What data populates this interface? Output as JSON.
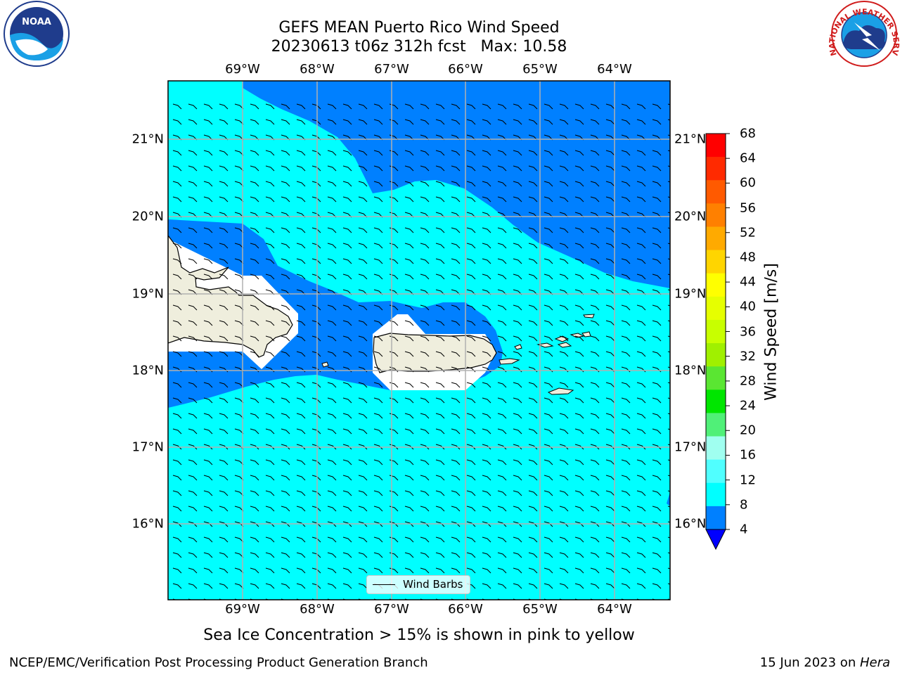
{
  "title": {
    "line1": "GEFS MEAN Puerto Rico Wind Speed",
    "line2": "20230613 t06z 312h fcst   Max: 10.58"
  },
  "longitude_labels": [
    "69°W",
    "68°W",
    "67°W",
    "66°W",
    "65°W",
    "64°W"
  ],
  "latitude_labels": [
    "21°N",
    "20°N",
    "19°N",
    "18°N",
    "17°N",
    "16°N"
  ],
  "colorbar": {
    "label": "Wind Speed [m/s]",
    "ticks": [
      "68",
      "64",
      "60",
      "56",
      "52",
      "48",
      "44",
      "40",
      "36",
      "32",
      "28",
      "24",
      "20",
      "16",
      "12",
      "8",
      "4"
    ],
    "colors": [
      "#ff0000",
      "#ff2a00",
      "#ff5a00",
      "#ff8000",
      "#ffaa00",
      "#ffd500",
      "#ffff00",
      "#e6ff00",
      "#c8ff00",
      "#a0f000",
      "#5ae632",
      "#00e600",
      "#50f078",
      "#a0fff0",
      "#50ffff",
      "#00ffff",
      "#0080ff"
    ],
    "under_color": "#0000ff"
  },
  "legend": {
    "label": "Wind Barbs"
  },
  "subtitle": "Sea Ice Concentration > 15% is shown in pink to yellow",
  "footer": {
    "left": "NCEP/EMC/Verification Post Processing Product Generation Branch",
    "right_date": "15 Jun 2023 on ",
    "right_host": "Hera"
  },
  "logos": {
    "left": "NOAA",
    "right": "NATIONAL WEATHER SERVICE"
  },
  "map_colors": {
    "light": "#00ffff",
    "dark": "#0080ff",
    "land": "#efeedd",
    "grid": "#b0b0b0"
  }
}
